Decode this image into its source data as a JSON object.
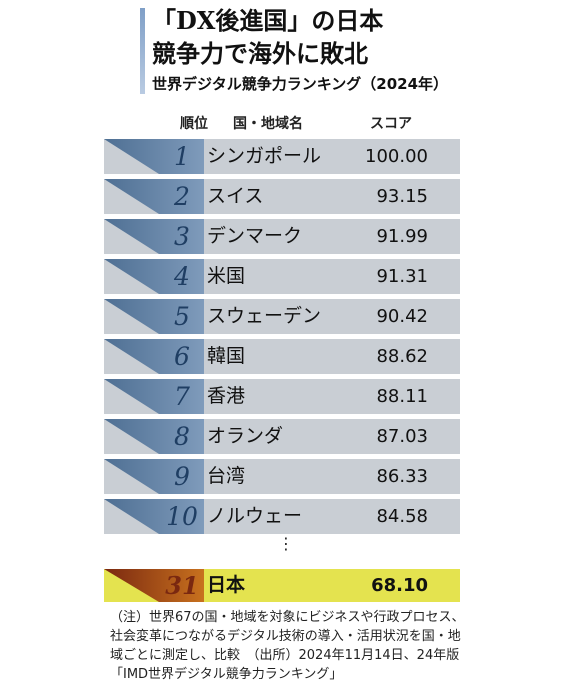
{
  "title": {
    "line1": "「DX後進国」の日本",
    "line2": "競争力で海外に敗北"
  },
  "subtitle": "世界デジタル競争力ランキング（2024年）",
  "headers": {
    "rank": "順位",
    "country": "国・地域名",
    "score": "スコア"
  },
  "colors": {
    "row_bg": "#c9ced4",
    "row_accent": "#4e6f93",
    "rank_text": "#1f3e63",
    "highlight_bg": "#e4e34f",
    "highlight_accent": "#7a2810"
  },
  "chart_data": {
    "type": "table",
    "title": "世界デジタル競争力ランキング（2024年）",
    "columns": [
      "順位",
      "国・地域名",
      "スコア"
    ],
    "rows": [
      {
        "rank": "1",
        "name": "シンガポール",
        "score": "100.00"
      },
      {
        "rank": "2",
        "name": "スイス",
        "score": "93.15"
      },
      {
        "rank": "3",
        "name": "デンマーク",
        "score": "91.99"
      },
      {
        "rank": "4",
        "name": "米国",
        "score": "91.31"
      },
      {
        "rank": "5",
        "name": "スウェーデン",
        "score": "90.42"
      },
      {
        "rank": "6",
        "name": "韓国",
        "score": "88.62"
      },
      {
        "rank": "7",
        "name": "香港",
        "score": "88.11"
      },
      {
        "rank": "8",
        "name": "オランダ",
        "score": "87.03"
      },
      {
        "rank": "9",
        "name": "台湾",
        "score": "86.33"
      },
      {
        "rank": "10",
        "name": "ノルウェー",
        "score": "84.58"
      }
    ],
    "ellipsis": "⋮",
    "highlight": {
      "rank": "31",
      "name": "日本",
      "score": "68.10"
    }
  },
  "note": "（注）世界67の国・地域を対象にビジネスや行政プロセス、社会変革につながるデジタル技術の導入・活用状況を国・地域ごとに測定し、比較　（出所）2024年11月14日、24年版「IMD世界デジタル競争力ランキング」"
}
